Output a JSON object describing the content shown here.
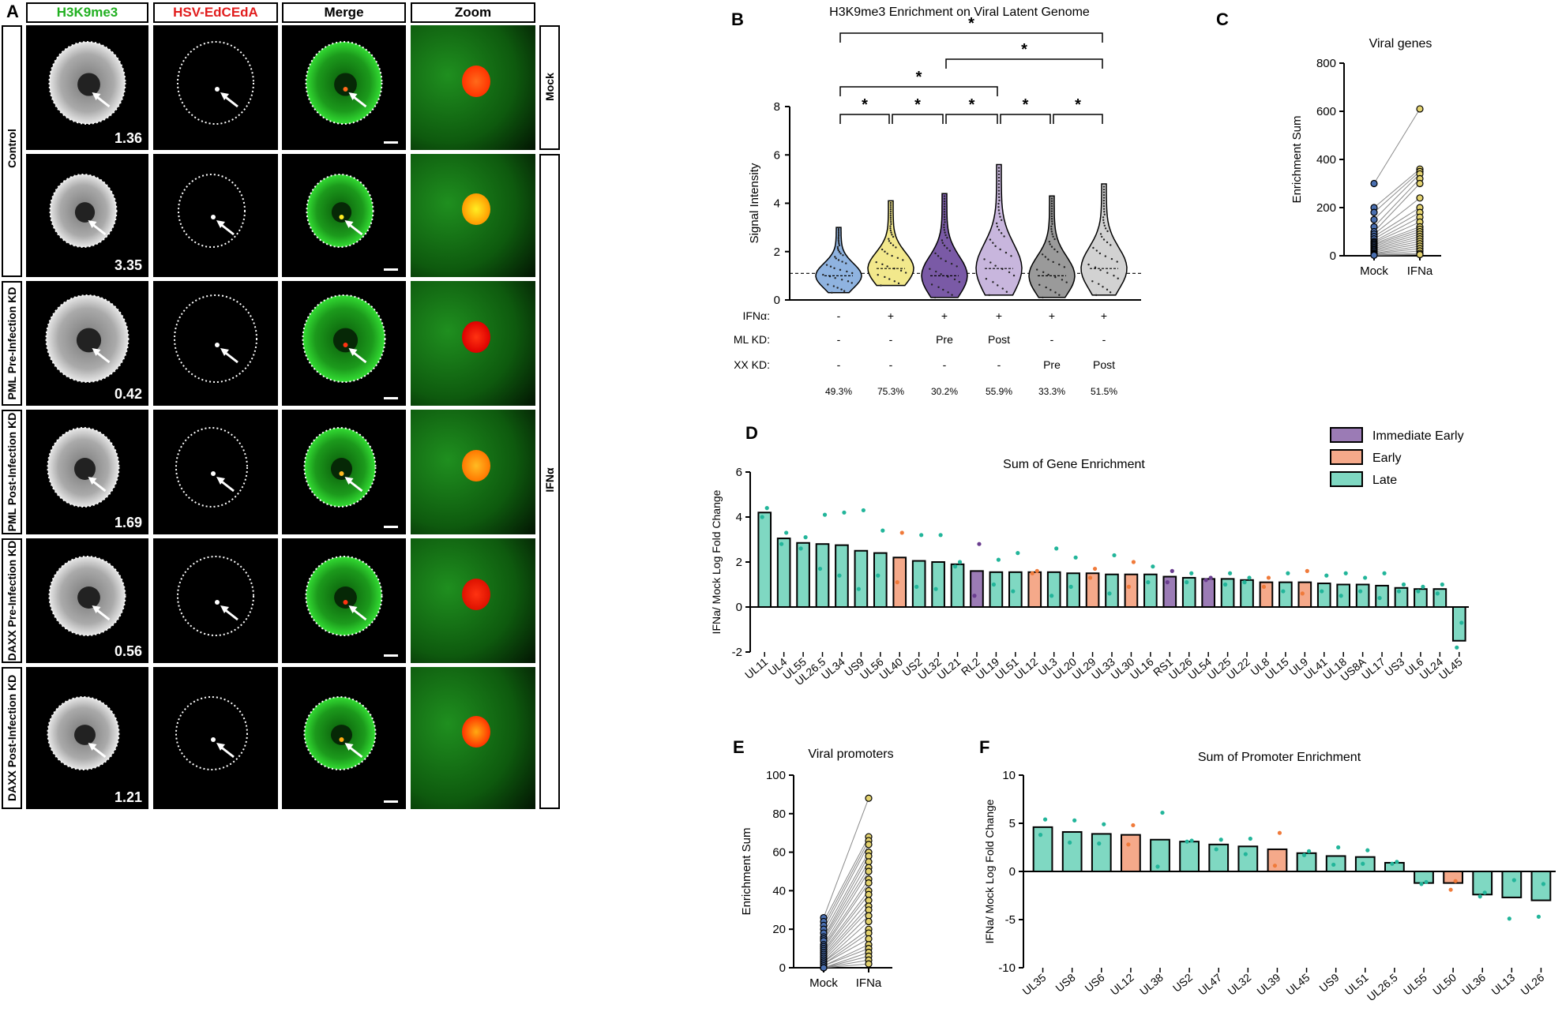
{
  "panelA": {
    "letter": "A",
    "headers": {
      "c1": "H3K9me3",
      "c2": "HSV-EdCEdA",
      "c3": "Merge",
      "c4": "Zoom"
    },
    "header_colors": {
      "c1": "#22b022",
      "c2": "#e11d1d",
      "c3": "#000000",
      "c4": "#000000"
    },
    "group_labels": {
      "control": "Control",
      "mock": "Mock",
      "ifna": "IFNα"
    },
    "rows": [
      {
        "label": "",
        "value": "1.36"
      },
      {
        "label": "",
        "value": "3.35"
      },
      {
        "label": "PML Pre-Infection KD",
        "value": "0.42"
      },
      {
        "label": "PML Post-Infection KD",
        "value": "1.69"
      },
      {
        "label": "DAXX Pre-Infection KD",
        "value": "0.56"
      },
      {
        "label": "DAXX Post-Infection KD",
        "value": "1.21"
      }
    ]
  },
  "panelB": {
    "letter": "B",
    "chart_data": {
      "type": "violin",
      "title": "H3K9me3 Enrichment on Viral Latent Genome",
      "ylabel": "Signal Intensity",
      "ylim": [
        0,
        8
      ],
      "yticks": [
        "0",
        "2",
        "4",
        "6",
        "8"
      ],
      "reference_line": 1.1,
      "colors": [
        "#8fb3e0",
        "#f2e88c",
        "#7a5aa6",
        "#c8b6dd",
        "#9a9a9a",
        "#d2d2d2"
      ],
      "groups": [
        {
          "min": 0.3,
          "max": 3.0,
          "median": 1.0
        },
        {
          "min": 0.6,
          "max": 4.1,
          "median": 1.3
        },
        {
          "min": 0.1,
          "max": 4.4,
          "median": 1.0
        },
        {
          "min": 0.2,
          "max": 5.6,
          "median": 1.3
        },
        {
          "min": 0.1,
          "max": 4.3,
          "median": 1.0
        },
        {
          "min": 0.2,
          "max": 4.8,
          "median": 1.3
        }
      ],
      "significance": [
        {
          "from": 0,
          "to": 1,
          "label": "*"
        },
        {
          "from": 1,
          "to": 2,
          "label": "*"
        },
        {
          "from": 2,
          "to": 3,
          "label": "*"
        },
        {
          "from": 3,
          "to": 4,
          "label": "*"
        },
        {
          "from": 4,
          "to": 5,
          "label": "*"
        },
        {
          "from": 0,
          "to": 3,
          "label": "*"
        },
        {
          "from": 2,
          "to": 5,
          "label": "*"
        },
        {
          "from": 0,
          "to": 5,
          "label": "*"
        }
      ],
      "table": {
        "row_labels": [
          "IFNα:",
          "PML KD:",
          "DAXX KD:"
        ],
        "rows": [
          [
            "-",
            "+",
            "+",
            "+",
            "+",
            "+"
          ],
          [
            "-",
            "-",
            "Pre",
            "Post",
            "-",
            "-"
          ],
          [
            "-",
            "-",
            "-",
            "-",
            "Pre",
            "Post"
          ]
        ],
        "percentages": [
          "49.3%",
          "75.3%",
          "30.2%",
          "55.9%",
          "33.3%",
          "51.5%"
        ]
      }
    }
  },
  "panelC": {
    "letter": "C",
    "chart_data": {
      "type": "paired-scatter",
      "title": "Viral genes",
      "ylabel": "Enrichment Sum",
      "categories": [
        "Mock",
        "IFNa"
      ],
      "ylim": [
        0,
        800
      ],
      "yticks": [
        "0",
        "200",
        "400",
        "600",
        "800"
      ],
      "pairs": [
        [
          300,
          610
        ],
        [
          200,
          360
        ],
        [
          180,
          350
        ],
        [
          150,
          340
        ],
        [
          120,
          320
        ],
        [
          100,
          300
        ],
        [
          90,
          240
        ],
        [
          80,
          200
        ],
        [
          70,
          180
        ],
        [
          60,
          160
        ],
        [
          55,
          140
        ],
        [
          50,
          120
        ],
        [
          45,
          110
        ],
        [
          40,
          100
        ],
        [
          35,
          90
        ],
        [
          30,
          80
        ],
        [
          25,
          70
        ],
        [
          20,
          60
        ],
        [
          15,
          50
        ],
        [
          10,
          40
        ],
        [
          8,
          30
        ],
        [
          5,
          20
        ],
        [
          3,
          10
        ],
        [
          2,
          5
        ]
      ],
      "colors": [
        "#4a6fb0",
        "#e3d26f"
      ]
    }
  },
  "panelD": {
    "letter": "D",
    "chart_data": {
      "type": "bar",
      "title": "Sum of Gene Enrichment",
      "ylabel": "IFNa/ Mock Log Fold Change",
      "ylim": [
        -2,
        6
      ],
      "yticks": [
        "-2",
        "0",
        "2",
        "4",
        "6"
      ],
      "legend": [
        {
          "name": "Immediate Early",
          "color": "#9b7bb5"
        },
        {
          "name": "Early",
          "color": "#f5a98a"
        },
        {
          "name": "Late",
          "color": "#7fd8c2"
        }
      ],
      "categories": [
        "UL11",
        "UL4",
        "UL55",
        "UL26.5",
        "UL34",
        "US9",
        "UL56",
        "UL40",
        "US2",
        "UL32",
        "UL21",
        "RL2",
        "UL19",
        "UL51",
        "UL12",
        "UL3",
        "UL20",
        "UL29",
        "UL33",
        "UL30",
        "UL16",
        "RS1",
        "UL26",
        "UL54",
        "UL25",
        "UL22",
        "UL8",
        "UL15",
        "UL9",
        "UL41",
        "UL18",
        "US8A",
        "UL17",
        "US3",
        "UL6",
        "UL24",
        "UL45"
      ],
      "values": [
        4.2,
        3.05,
        2.85,
        2.8,
        2.75,
        2.5,
        2.4,
        2.2,
        2.05,
        2.0,
        1.9,
        1.6,
        1.55,
        1.55,
        1.55,
        1.55,
        1.5,
        1.5,
        1.45,
        1.45,
        1.45,
        1.35,
        1.3,
        1.25,
        1.25,
        1.2,
        1.1,
        1.1,
        1.1,
        1.05,
        1.0,
        1.0,
        0.95,
        0.85,
        0.8,
        0.8,
        -1.5
      ],
      "classes": [
        "L",
        "L",
        "L",
        "L",
        "L",
        "L",
        "L",
        "E",
        "L",
        "L",
        "L",
        "IE",
        "L",
        "L",
        "E",
        "L",
        "L",
        "E",
        "L",
        "E",
        "L",
        "IE",
        "L",
        "IE",
        "L",
        "L",
        "E",
        "L",
        "E",
        "L",
        "L",
        "L",
        "L",
        "L",
        "L",
        "L",
        "L"
      ],
      "replicates": [
        [
          4.4,
          4.0
        ],
        [
          3.3,
          2.8
        ],
        [
          3.1,
          2.6
        ],
        [
          4.1,
          1.7
        ],
        [
          4.2,
          1.4
        ],
        [
          4.3,
          0.8
        ],
        [
          3.4,
          1.4
        ],
        [
          3.3,
          1.1
        ],
        [
          3.2,
          0.9
        ],
        [
          3.2,
          0.8
        ],
        [
          2.0,
          1.8
        ],
        [
          2.8,
          0.5
        ],
        [
          2.1,
          1.0
        ],
        [
          2.4,
          0.7
        ],
        [
          1.6,
          1.5
        ],
        [
          2.6,
          0.5
        ],
        [
          2.2,
          0.9
        ],
        [
          1.7,
          1.3
        ],
        [
          2.3,
          0.6
        ],
        [
          2.0,
          0.9
        ],
        [
          1.8,
          1.1
        ],
        [
          1.6,
          1.1
        ],
        [
          1.5,
          1.1
        ],
        [
          1.3,
          1.2
        ],
        [
          1.5,
          1.0
        ],
        [
          1.3,
          1.1
        ],
        [
          1.3,
          0.9
        ],
        [
          1.5,
          0.7
        ],
        [
          1.6,
          0.6
        ],
        [
          1.4,
          0.7
        ],
        [
          1.5,
          0.5
        ],
        [
          1.3,
          0.7
        ],
        [
          1.5,
          0.4
        ],
        [
          1.0,
          0.7
        ],
        [
          0.9,
          0.7
        ],
        [
          1.0,
          0.6
        ],
        [
          -0.7,
          -1.8
        ]
      ]
    }
  },
  "panelE": {
    "letter": "E",
    "chart_data": {
      "type": "paired-scatter",
      "title": "Viral promoters",
      "ylabel": "Enrichment Sum",
      "categories": [
        "Mock",
        "IFNa"
      ],
      "ylim": [
        0,
        100
      ],
      "yticks": [
        "0",
        "20",
        "40",
        "60",
        "80",
        "100"
      ],
      "pairs": [
        [
          26,
          88
        ],
        [
          24,
          68
        ],
        [
          22,
          66
        ],
        [
          20,
          64
        ],
        [
          18,
          60
        ],
        [
          16,
          58
        ],
        [
          15,
          55
        ],
        [
          14,
          52
        ],
        [
          12,
          50
        ],
        [
          11,
          46
        ],
        [
          10,
          44
        ],
        [
          9,
          40
        ],
        [
          8,
          38
        ],
        [
          7,
          35
        ],
        [
          6,
          32
        ],
        [
          5,
          30
        ],
        [
          4,
          27
        ],
        [
          3,
          24
        ],
        [
          3,
          20
        ],
        [
          2,
          18
        ],
        [
          2,
          15
        ],
        [
          1,
          12
        ],
        [
          1,
          10
        ],
        [
          0,
          8
        ],
        [
          0,
          6
        ],
        [
          0,
          4
        ],
        [
          0,
          2
        ]
      ],
      "colors": [
        "#4a6fb0",
        "#e3d26f"
      ]
    }
  },
  "panelF": {
    "letter": "F",
    "chart_data": {
      "type": "bar",
      "title": "Sum of Promoter Enrichment",
      "ylabel": "IFNa/ Mock Log Fold Change",
      "ylim": [
        -10,
        10
      ],
      "yticks": [
        "-10",
        "-5",
        "0",
        "5",
        "10"
      ],
      "categories": [
        "UL35",
        "US8",
        "US6",
        "UL12",
        "UL38",
        "US2",
        "UL47",
        "UL32",
        "UL39",
        "UL45",
        "US9",
        "UL51",
        "UL26.5",
        "UL55",
        "UL50",
        "UL36",
        "UL13",
        "UL26"
      ],
      "values": [
        4.6,
        4.1,
        3.9,
        3.8,
        3.3,
        3.1,
        2.8,
        2.6,
        2.3,
        1.9,
        1.6,
        1.5,
        0.9,
        -1.2,
        -1.2,
        -2.4,
        -2.7,
        -3.0
      ],
      "classes": [
        "L",
        "L",
        "L",
        "E",
        "L",
        "L",
        "L",
        "L",
        "E",
        "L",
        "L",
        "L",
        "L",
        "L",
        "E",
        "L",
        "L",
        "L"
      ],
      "replicates": [
        [
          5.4,
          3.8
        ],
        [
          5.3,
          3.0
        ],
        [
          4.9,
          2.9
        ],
        [
          4.8,
          2.8
        ],
        [
          6.1,
          0.5
        ],
        [
          3.2,
          3.1
        ],
        [
          3.3,
          2.3
        ],
        [
          3.4,
          1.8
        ],
        [
          4.0,
          0.6
        ],
        [
          2.1,
          1.7
        ],
        [
          2.5,
          0.7
        ],
        [
          2.2,
          0.8
        ],
        [
          1.0,
          0.8
        ],
        [
          -1.1,
          -1.3
        ],
        [
          -1.0,
          -1.9
        ],
        [
          -2.2,
          -2.6
        ],
        [
          -0.9,
          -4.9
        ],
        [
          -1.3,
          -4.7
        ]
      ]
    }
  }
}
